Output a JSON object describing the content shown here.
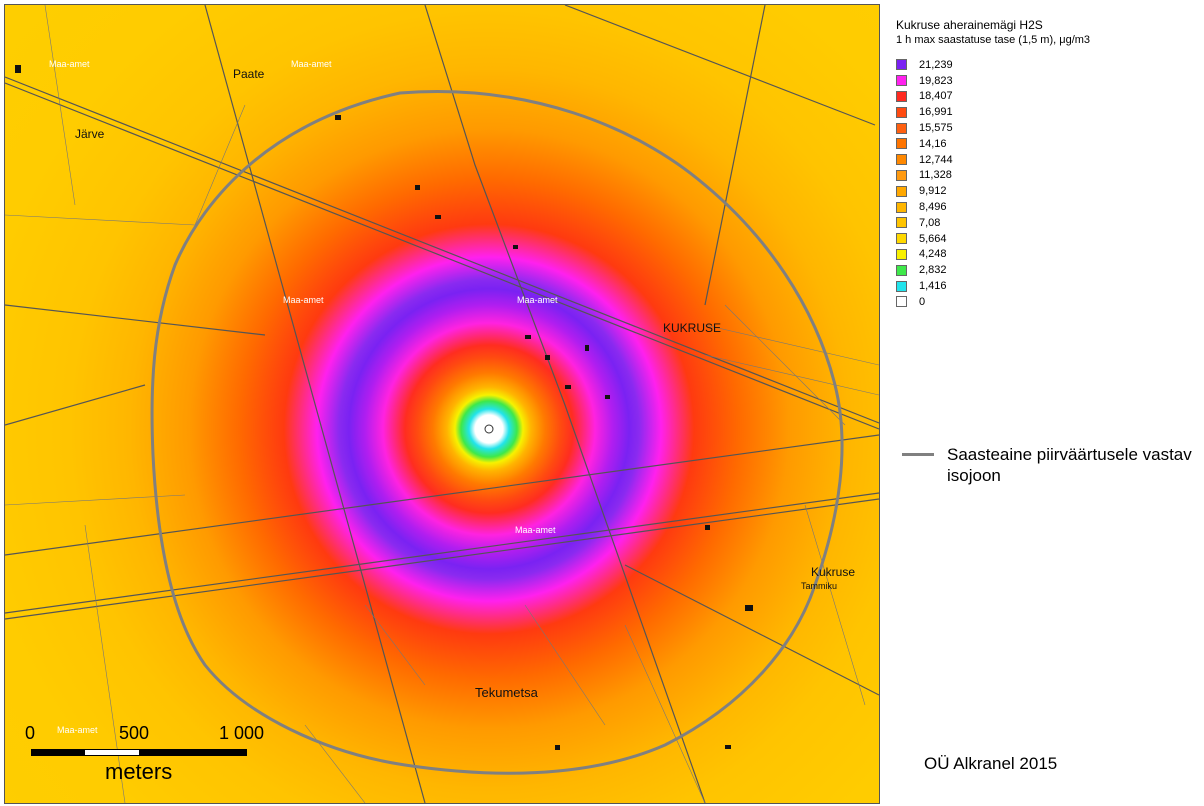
{
  "legend": {
    "title": "Kukruse aherainemägi H2S",
    "subtitle": "1 h max saastatuse tase (1,5 m), μg/m3",
    "items": [
      {
        "value": "21,239",
        "color": "#7a22f2"
      },
      {
        "value": "19,823",
        "color": "#ff22ee"
      },
      {
        "value": "18,407",
        "color": "#ff2a20"
      },
      {
        "value": "16,991",
        "color": "#ff4a10"
      },
      {
        "value": "15,575",
        "color": "#ff6010"
      },
      {
        "value": "14,16",
        "color": "#ff7400"
      },
      {
        "value": "12,744",
        "color": "#ff8800"
      },
      {
        "value": "11,328",
        "color": "#ff9a10"
      },
      {
        "value": "9,912",
        "color": "#ffa800"
      },
      {
        "value": "8,496",
        "color": "#ffb600"
      },
      {
        "value": "7,08",
        "color": "#ffc400"
      },
      {
        "value": "5,664",
        "color": "#ffd800"
      },
      {
        "value": "4,248",
        "color": "#f8f000"
      },
      {
        "value": "2,832",
        "color": "#3ee84a"
      },
      {
        "value": "1,416",
        "color": "#22e4ec"
      },
      {
        "value": "0",
        "color": "#ffffff"
      }
    ]
  },
  "isoline": {
    "label": "Saasteaine piirväärtusele vastav isojoon",
    "color": "#808080"
  },
  "scale": {
    "ticks": [
      "0",
      "500",
      "1 000"
    ],
    "unit": "meters"
  },
  "credit": "OÜ Alkranel 2015",
  "map": {
    "places": {
      "paate": "Paate",
      "jarve": "Järve",
      "kukruse_village": "KUKRUSE",
      "kukruse": "Kukruse",
      "tammiku": "Tammiku",
      "takumetsa": "Tekumetsa",
      "maaamet_1": "Maa-amet",
      "maaamet_2": "Maa-amet",
      "maaamet_3": "Maa-amet",
      "maaamet_4": "Maa-amet",
      "maaamet_5": "Maa-amet",
      "maaamet_6": "Maa-amet"
    }
  }
}
